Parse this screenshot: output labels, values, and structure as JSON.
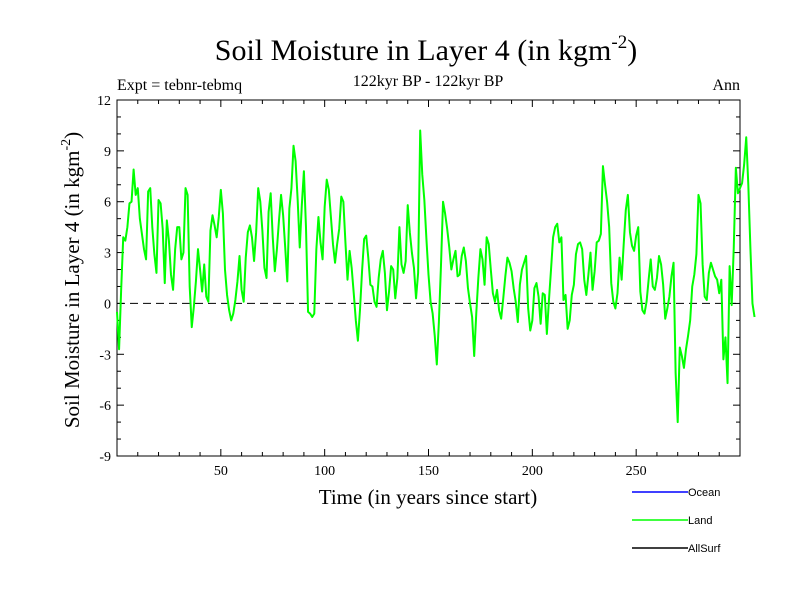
{
  "chart_data": {
    "type": "line",
    "title": "Soil Moisture in Layer 4 (in kgm",
    "title_sup": "-2",
    "title_end": ")",
    "subtitle": "122kyr BP - 122kyr BP",
    "expt_label": "Expt = tebnr-tebmq",
    "season_label": "Ann",
    "xlabel": "Time (in years since start)",
    "ylabel": "Soil Moisture in Layer 4 (in kgm",
    "ylabel_sup": "-2",
    "ylabel_end": ")",
    "xlim": [
      0,
      300
    ],
    "ylim": [
      -9,
      12
    ],
    "x_ticks": [
      50,
      100,
      150,
      200,
      250
    ],
    "y_ticks": [
      -9,
      -6,
      -3,
      0,
      3,
      6,
      9,
      12
    ],
    "y_tick_labels": [
      "-9",
      "-6",
      "-3",
      "0",
      "3",
      "6",
      "9",
      "12"
    ],
    "zero_line": "dashed",
    "legend": [
      {
        "name": "Ocean",
        "color": "#0000ff"
      },
      {
        "name": "Land",
        "color": "#00ff00"
      },
      {
        "name": "AllSurf",
        "color": "#000000"
      }
    ],
    "series": [
      {
        "name": "Land",
        "color": "#00ff00",
        "x_start": 0,
        "x_step": 1,
        "values": [
          -0.5,
          -2.7,
          0.8,
          3.9,
          3.7,
          4.5,
          5.9,
          6.0,
          7.9,
          6.4,
          6.8,
          5.0,
          4.1,
          3.2,
          2.6,
          6.6,
          6.8,
          4.5,
          2.9,
          1.8,
          6.1,
          5.9,
          4.4,
          1.2,
          4.9,
          3.7,
          1.7,
          0.8,
          3.2,
          4.5,
          4.5,
          2.6,
          3.0,
          6.8,
          6.4,
          1.0,
          -1.4,
          -0.2,
          1.3,
          3.2,
          2.0,
          0.7,
          2.3,
          0.4,
          0.1,
          4.3,
          5.2,
          4.6,
          3.9,
          5.1,
          6.7,
          5.3,
          2.0,
          0.5,
          -0.4,
          -1.0,
          -0.6,
          0.2,
          1.3,
          2.8,
          0.8,
          0.1,
          2.7,
          4.2,
          4.6,
          3.9,
          2.5,
          4.2,
          6.8,
          6.0,
          4.3,
          2.1,
          1.5,
          5.4,
          6.5,
          3.9,
          1.9,
          3.2,
          4.9,
          6.4,
          5.2,
          3.3,
          1.3,
          5.6,
          6.8,
          9.3,
          8.4,
          6.1,
          3.3,
          5.8,
          7.8,
          4.5,
          -0.5,
          -0.6,
          -0.8,
          -0.6,
          3.2,
          5.1,
          3.6,
          2.6,
          5.7,
          7.3,
          6.7,
          5.1,
          3.5,
          2.4,
          3.5,
          4.4,
          6.3,
          6.0,
          3.6,
          1.4,
          3.1,
          2.1,
          0.6,
          -1.0,
          -2.2,
          -0.4,
          1.9,
          3.8,
          4.0,
          2.7,
          1.1,
          1.0,
          0.1,
          -0.2,
          1.5,
          2.6,
          3.1,
          1.8,
          -0.4,
          0.7,
          2.2,
          2.0,
          0.3,
          1.5,
          4.5,
          2.3,
          1.8,
          2.5,
          5.8,
          4.2,
          3.0,
          2.1,
          0.3,
          1.8,
          10.2,
          7.6,
          6.1,
          3.8,
          1.7,
          0.1,
          -0.6,
          -1.9,
          -3.6,
          -1.1,
          2.2,
          6.0,
          5.3,
          4.4,
          3.3,
          2.0,
          2.6,
          3.1,
          1.6,
          1.7,
          2.8,
          3.3,
          2.5,
          0.9,
          0.0,
          -0.8,
          -3.1,
          -0.6,
          1.5,
          3.2,
          2.6,
          1.1,
          3.9,
          3.5,
          2.0,
          0.6,
          0.1,
          0.8,
          -0.4,
          -0.9,
          0.3,
          1.6,
          2.7,
          2.4,
          1.9,
          0.9,
          0.1,
          -1.1,
          1.1,
          2.0,
          2.4,
          2.8,
          -0.3,
          -1.6,
          -1.0,
          0.9,
          1.2,
          0.4,
          -1.2,
          0.6,
          0.5,
          -1.8,
          0.2,
          2.0,
          3.9,
          4.5,
          4.7,
          3.6,
          3.9,
          0.2,
          0.5,
          -1.5,
          -1.0,
          0.5,
          1.1,
          2.9,
          3.5,
          3.6,
          3.2,
          1.4,
          0.5,
          1.7,
          3.0,
          0.8,
          1.9,
          3.6,
          3.7,
          4.1,
          8.1,
          7.0,
          6.0,
          4.5,
          1.2,
          0.1,
          -0.3,
          0.6,
          2.7,
          1.4,
          3.5,
          5.5,
          6.4,
          4.2,
          3.4,
          3.1,
          4.0,
          4.5,
          0.7,
          -0.4,
          -0.6,
          0.1,
          1.4,
          2.6,
          1.0,
          0.8,
          1.5,
          2.8,
          2.3,
          1.1,
          -0.9,
          -0.3,
          0.4,
          1.6,
          2.4,
          -4.1,
          -7.0,
          -2.6,
          -3.1,
          -3.8,
          -2.7,
          -1.9,
          -1.0,
          1.0,
          1.7,
          2.9,
          6.4,
          5.9,
          2.3,
          0.4,
          0.2,
          1.8,
          2.4,
          2.0,
          1.6,
          1.4,
          0.6,
          1.4,
          -3.3,
          -2.0,
          -4.7,
          2.2,
          -0.1,
          3.3,
          8.0,
          6.5,
          6.8,
          7.1,
          8.2,
          9.8,
          7.0,
          3.3,
          0.0,
          -0.8
        ]
      }
    ]
  }
}
